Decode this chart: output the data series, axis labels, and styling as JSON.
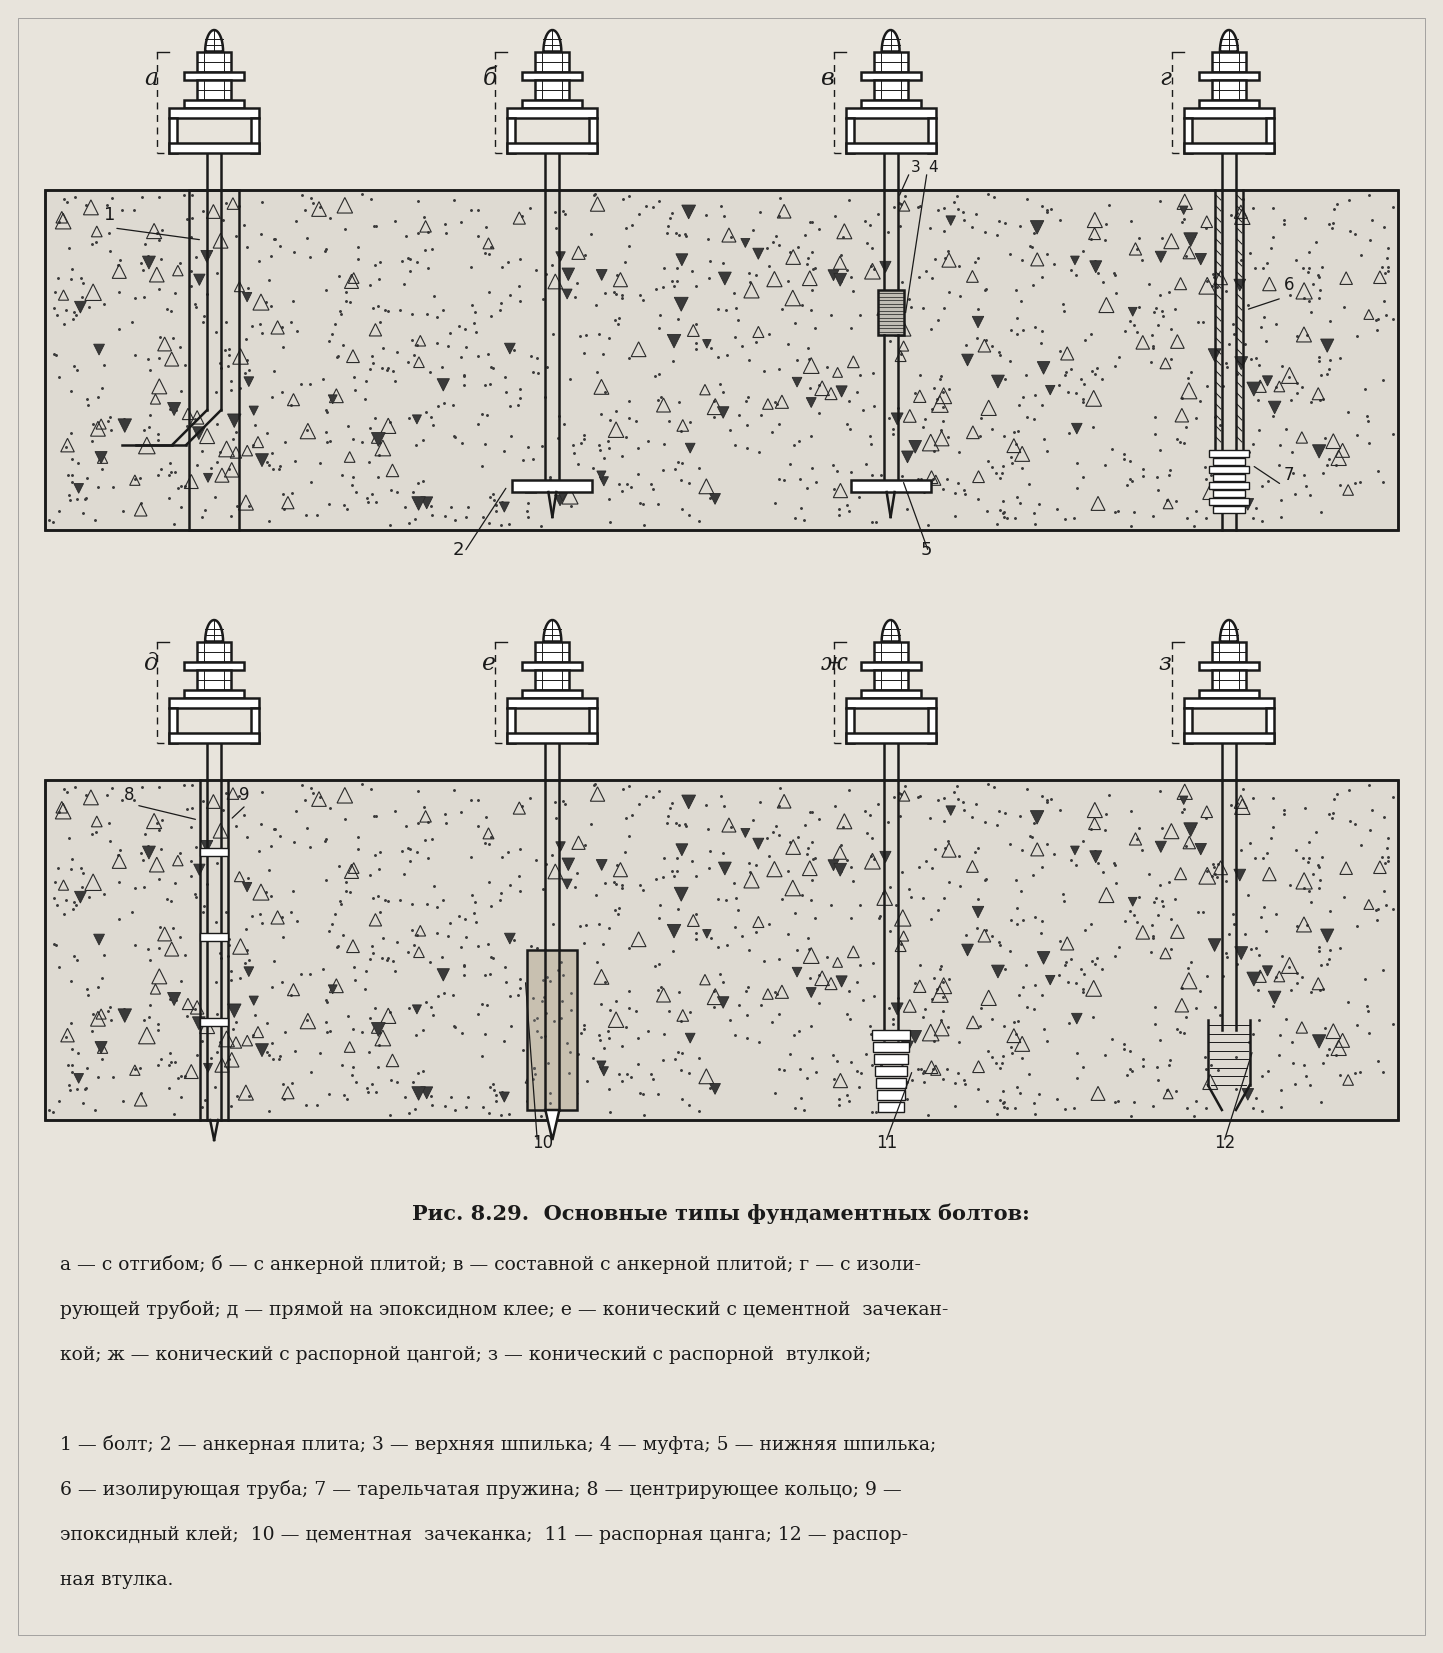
{
  "bg_color": "#e8e4dc",
  "line_color": "#1a1a1a",
  "concrete_bg": "#dedad2",
  "title": "Рис. 8.29.  Основные типы фундаментных болтов:",
  "caption_line1": "а — с отгибом; б — с анкерной плитой; в — составной с анкерной плитой; г — с изоли-",
  "caption_line2": "рующей трубой; д — прямой на эпоксидном клее; е — конический с цементной  зачекан-",
  "caption_line3": "кой; ж — конический с распорной цангой; з — конический с распорной  втулкой;",
  "caption_line4": "1 — болт; 2 — анкерная плита; 3 — верхняя шпилька; 4 — муфта; 5 — нижняя шпилька;",
  "caption_line5": "6 — изолирующая труба; 7 — тарельчатая пружина; 8 — центрирующее кольцо; 9 —",
  "caption_line6": "эпоксидный клей;  10 — цементная  зачеканка;  11 — распорная цанга; 12 — распор-",
  "caption_line7": "ная втулка.",
  "panel_labels_top": [
    "а",
    "б",
    "в",
    "г"
  ],
  "panel_labels_bottom": [
    "д",
    "е",
    "ж",
    "з"
  ]
}
